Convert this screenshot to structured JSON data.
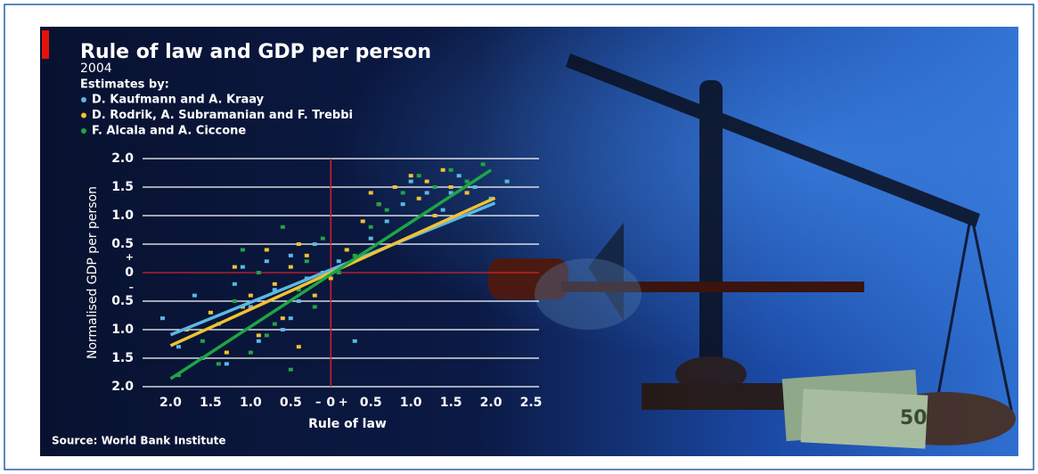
{
  "chart_data": {
    "type": "scatter",
    "title": "Rule of law and GDP per person",
    "subtitle": "2004",
    "legend_title": "Estimates by:",
    "x_label": "Rule of law",
    "y_label": "Normalised GDP per person",
    "source": "Source: World Bank Institute",
    "y_sign_labels": [
      "+",
      "–"
    ],
    "x_sign_labels": [
      "–",
      "+"
    ],
    "xlim": [
      -2.35,
      2.6
    ],
    "ylim": [
      -2,
      2
    ],
    "xticks": [
      {
        "value": -2,
        "label": "2.0"
      },
      {
        "value": -1.5,
        "label": "1.5"
      },
      {
        "value": -1,
        "label": "1.0"
      },
      {
        "value": -0.5,
        "label": "0.5"
      },
      0,
      0.5,
      {
        "value": 1,
        "label": "1.0"
      },
      1.5,
      {
        "value": 2,
        "label": "2.0"
      },
      2.5
    ],
    "yticks": [
      {
        "value": 2,
        "label": "2.0"
      },
      1.5,
      {
        "value": 1,
        "label": "1.0"
      },
      0.5,
      0,
      {
        "value": -0.5,
        "label": "0.5"
      },
      {
        "value": -1,
        "label": "1.0"
      },
      {
        "value": -1.5,
        "label": "1.5"
      },
      {
        "value": -2,
        "label": "2.0"
      }
    ],
    "grid": true,
    "grid_color": "#ffffff",
    "zero_line_color": "#d4202a",
    "series": [
      {
        "name": "D. Kaufmann and A. Kraay",
        "color": "#5ab8e6",
        "x": [
          -2.1,
          -1.9,
          -1.7,
          -1.6,
          -1.4,
          -1.3,
          -1.1,
          -1.0,
          -0.9,
          -0.8,
          -0.7,
          -0.6,
          -0.5,
          -0.4,
          -0.3,
          -0.2,
          -0.1,
          0.1,
          0.3,
          0.5,
          0.7,
          0.9,
          1.0,
          1.2,
          1.4,
          1.6,
          1.8,
          2.0,
          2.2,
          1.5,
          -0.5,
          -1.2
        ],
        "values": [
          -0.8,
          -1.3,
          -0.4,
          -1.5,
          -0.9,
          -1.6,
          0.1,
          -0.6,
          -1.2,
          0.2,
          -0.3,
          -1.0,
          0.3,
          -0.5,
          -0.1,
          0.5,
          0.0,
          0.2,
          -1.2,
          0.6,
          0.9,
          1.2,
          1.6,
          1.4,
          1.1,
          1.7,
          1.5,
          1.3,
          1.6,
          1.4,
          -0.8,
          -0.2
        ],
        "fit_x": [
          -2,
          2.05
        ],
        "fit_y": [
          -1.09,
          1.22
        ]
      },
      {
        "name": "D. Rodrik, A. Subramanian and F. Trebbi",
        "color": "#f2c230",
        "x": [
          -1.8,
          -1.5,
          -1.3,
          -1.2,
          -1.0,
          -0.9,
          -0.8,
          -0.7,
          -0.6,
          -0.5,
          -0.4,
          -0.3,
          -0.2,
          0.0,
          0.2,
          0.4,
          0.5,
          0.6,
          0.8,
          1.0,
          1.1,
          1.2,
          1.3,
          1.4,
          1.5,
          1.7,
          -1.1,
          -0.4
        ],
        "values": [
          -1.0,
          -0.7,
          -1.4,
          0.1,
          -0.4,
          -1.1,
          0.4,
          -0.2,
          -0.8,
          0.1,
          -1.3,
          0.3,
          -0.4,
          -0.1,
          0.4,
          0.9,
          1.4,
          1.2,
          1.5,
          1.7,
          1.3,
          1.6,
          1.0,
          1.8,
          1.5,
          1.4,
          -0.6,
          0.5
        ],
        "fit_x": [
          -2,
          2.05
        ],
        "fit_y": [
          -1.28,
          1.31
        ]
      },
      {
        "name": "F. Alcala and A. Ciccone",
        "color": "#1ea544",
        "x": [
          -1.9,
          -1.6,
          -1.4,
          -1.2,
          -1.0,
          -0.9,
          -0.7,
          -0.6,
          -0.5,
          -0.4,
          -0.3,
          -0.2,
          -0.1,
          0.1,
          0.3,
          0.5,
          0.7,
          0.9,
          1.1,
          1.3,
          1.5,
          1.7,
          1.9,
          -0.8,
          -1.1,
          0.6
        ],
        "values": [
          -1.8,
          -1.2,
          -1.6,
          -0.5,
          -1.4,
          0.0,
          -0.9,
          0.8,
          -1.7,
          -0.3,
          0.2,
          -0.6,
          0.6,
          0.0,
          0.3,
          0.8,
          1.1,
          1.4,
          1.7,
          1.5,
          1.8,
          1.6,
          1.9,
          -1.1,
          0.4,
          1.2
        ],
        "fit_x": [
          -2,
          2.0
        ],
        "fit_y": [
          -1.86,
          1.8
        ]
      }
    ]
  }
}
